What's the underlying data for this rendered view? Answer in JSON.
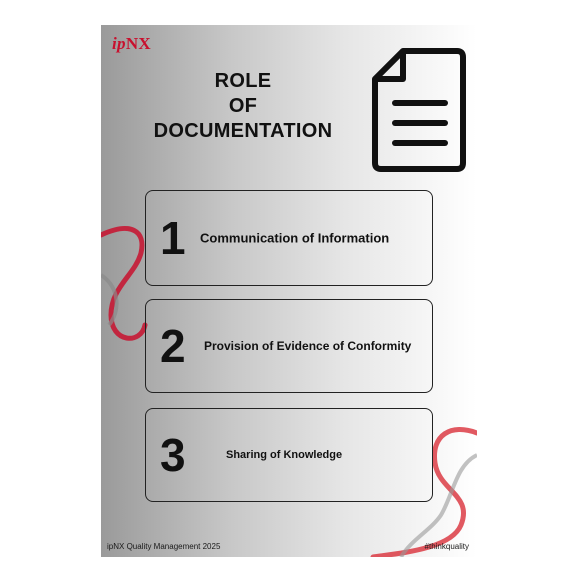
{
  "brand": {
    "logo_prefix": "ip",
    "logo_suffix": "NX"
  },
  "title": {
    "line1": "ROLE",
    "line2": "OF",
    "line3": "DOCUMENTATION"
  },
  "icons": {
    "document": "document-icon"
  },
  "items": [
    {
      "number": "1",
      "label": "Communication of Information"
    },
    {
      "number": "2",
      "label": "Provision of Evidence of Conformity"
    },
    {
      "number": "3",
      "label": "Sharing of Knowledge"
    }
  ],
  "footer": {
    "left": "ipNX Quality Management 2025",
    "right": "#thinkquality"
  },
  "colors": {
    "brand_red": "#c8102e",
    "ink": "#111111"
  }
}
